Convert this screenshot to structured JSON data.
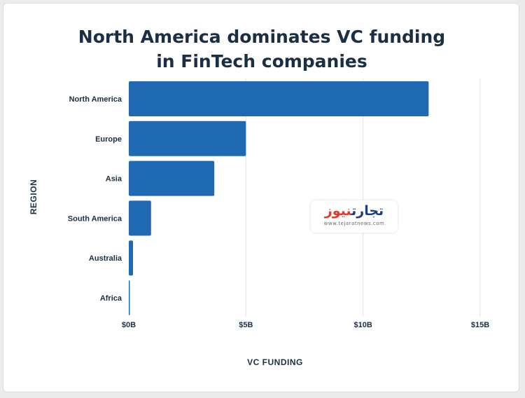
{
  "title_lines": [
    "North America dominates VC funding",
    "in FinTech companies"
  ],
  "watermark": {
    "part_a": "تجارت",
    "part_b": "نیوز",
    "url": "www.tejaratnews.com"
  },
  "chart_data": {
    "type": "bar",
    "orientation": "horizontal",
    "title": "North America dominates VC funding in FinTech companies",
    "categories": [
      "North America",
      "Europe",
      "Asia",
      "South America",
      "Australia",
      "Africa"
    ],
    "values": [
      12.8,
      5.0,
      3.65,
      0.95,
      0.18,
      0.04
    ],
    "value_unit": "billion USD",
    "xlabel": "VC FUNDING",
    "ylabel": "REGION",
    "xlim": [
      0,
      15
    ],
    "x_ticks": [
      0,
      5,
      10,
      15
    ],
    "x_tick_labels": [
      "$0B",
      "$5B",
      "$10B",
      "$15B"
    ],
    "grid": "vertical",
    "legend": "none",
    "bar_color": "#1f6ab3",
    "grid_color": "#e3e3e3"
  }
}
